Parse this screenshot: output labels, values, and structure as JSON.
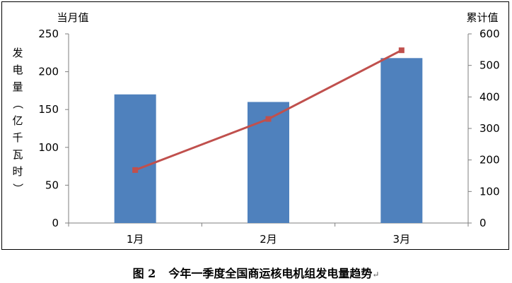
{
  "chart_data": {
    "type": "bar+line",
    "categories": [
      "1月",
      "2月",
      "3月"
    ],
    "bar_series": {
      "axis": "left",
      "color": "#4f81bd",
      "values": [
        170,
        160,
        218
      ]
    },
    "line_series": {
      "axis": "right",
      "color": "#c0504d",
      "values": [
        168,
        330,
        548
      ]
    },
    "left_axis": {
      "unit_label": "当月值",
      "title": "发电量（亿千瓦时）",
      "ylim": [
        0,
        250
      ],
      "ticks": [
        "0",
        "50",
        "100",
        "150",
        "200",
        "250"
      ]
    },
    "right_axis": {
      "unit_label": "累计值",
      "ylim": [
        0,
        600
      ],
      "ticks": [
        "0",
        "100",
        "200",
        "300",
        "400",
        "500",
        "600"
      ]
    },
    "grid": false,
    "legend": "none"
  },
  "caption": {
    "figure_number": "图 2",
    "title": "今年一季度全国商运核电机组发电量趋势",
    "return_mark": "↵"
  }
}
